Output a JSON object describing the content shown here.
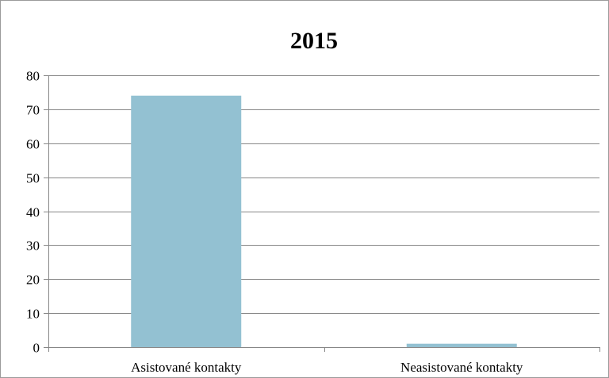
{
  "chart_data": {
    "type": "bar",
    "title": "2015",
    "categories": [
      "Asistované kontakty",
      "Neasistované kontakty"
    ],
    "values": [
      74,
      1
    ],
    "xlabel": "",
    "ylabel": "",
    "ylim": [
      0,
      80
    ],
    "yticks": [
      0,
      10,
      20,
      30,
      40,
      50,
      60,
      70,
      80
    ],
    "grid": true,
    "legend": "none",
    "bar_color": "#93c1d2"
  }
}
